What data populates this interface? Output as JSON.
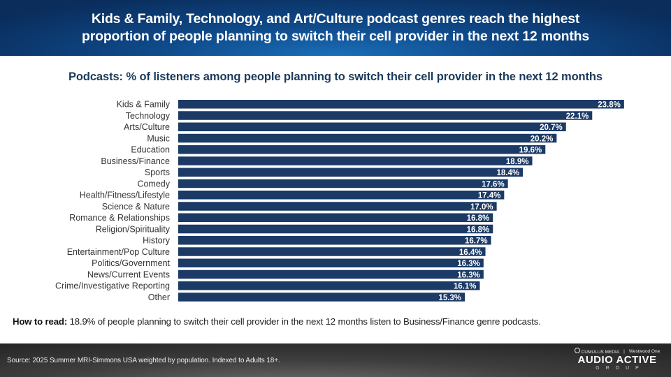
{
  "header": {
    "title_line1": "Kids & Family, Technology, and Art/Culture podcast genres reach the highest",
    "title_line2": "proportion of people planning to switch their cell provider in the next 12 months"
  },
  "chart_data": {
    "type": "bar",
    "orientation": "horizontal",
    "title": "Podcasts: % of listeners among people planning to switch their cell provider in the next 12 months",
    "xlabel": "",
    "ylabel": "",
    "unit": "%",
    "xlim": [
      0,
      25
    ],
    "grid": false,
    "legend": null,
    "bar_color": "#1b3a66",
    "categories": [
      "Kids & Family",
      "Technology",
      "Arts/Culture",
      "Music",
      "Education",
      "Business/Finance",
      "Sports",
      "Comedy",
      "Health/Fitness/Lifestyle",
      "Science & Nature",
      "Romance & Relationships",
      "Religion/Spirituality",
      "History",
      "Entertainment/Pop Culture",
      "Politics/Government",
      "News/Current Events",
      "Crime/Investigative Reporting",
      "Other"
    ],
    "values": [
      23.8,
      22.1,
      20.7,
      20.2,
      19.6,
      18.9,
      18.4,
      17.6,
      17.4,
      17.0,
      16.8,
      16.8,
      16.7,
      16.4,
      16.3,
      16.3,
      16.1,
      15.3
    ],
    "data_labels": [
      "23.8%",
      "22.1%",
      "20.7%",
      "20.2%",
      "19.6%",
      "18.9%",
      "18.4%",
      "17.6%",
      "17.4%",
      "17.0%",
      "16.8%",
      "16.8%",
      "16.7%",
      "16.4%",
      "16.3%",
      "16.3%",
      "16.1%",
      "15.3%"
    ]
  },
  "how_to_read": {
    "label": "How to read:",
    "text": " 18.9% of people planning to switch their cell provider in the next 12 months listen to Business/Finance genre podcasts."
  },
  "footer": {
    "source": "Source: 2025 Summer MRI-Simmons USA weighted by population.  Indexed to Adults 18+.",
    "logo_top_left": "CUMULUS MEDIA",
    "logo_top_right": "Westwood One",
    "logo_brand": "AUDIO ACTIVE",
    "logo_sub": "GROUP"
  }
}
